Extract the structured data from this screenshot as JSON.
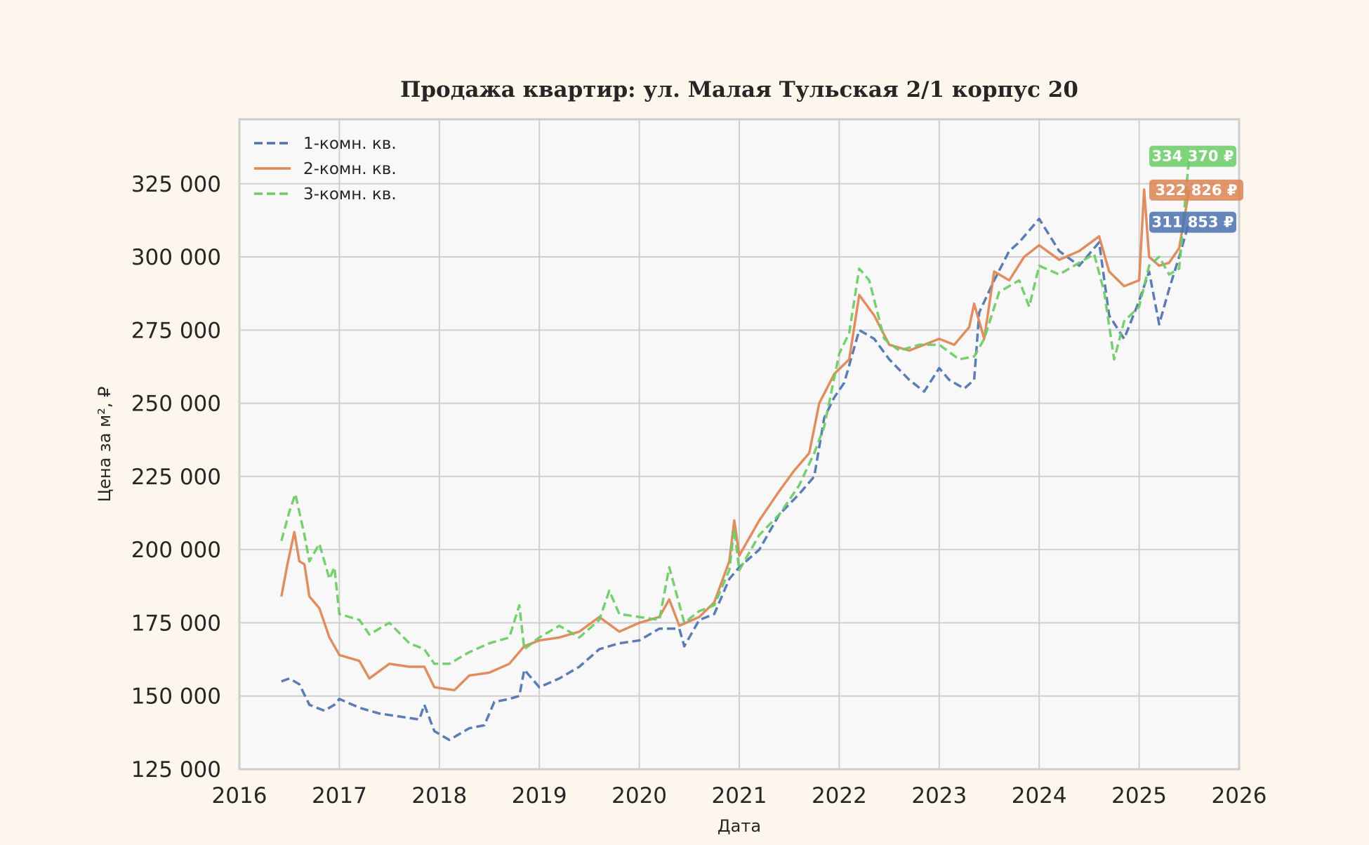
{
  "chart_data": {
    "type": "line",
    "title": "Продажа квартир: ул. Малая Тульская 2/1 корпус 20",
    "xlabel": "Дата",
    "ylabel": "Цена за м², ₽",
    "xlim": [
      2016,
      2026
    ],
    "ylim": [
      125000,
      347000
    ],
    "x_ticks": [
      2016,
      2017,
      2018,
      2019,
      2020,
      2021,
      2022,
      2023,
      2024,
      2025,
      2026
    ],
    "x_tick_labels": [
      "2016",
      "2017",
      "2018",
      "2019",
      "2020",
      "2021",
      "2022",
      "2023",
      "2024",
      "2025",
      "2026"
    ],
    "y_ticks": [
      125000,
      150000,
      175000,
      200000,
      225000,
      250000,
      275000,
      300000,
      325000
    ],
    "y_tick_labels": [
      "125 000",
      "150 000",
      "175 000",
      "200 000",
      "225 000",
      "250 000",
      "275 000",
      "300 000",
      "325 000"
    ],
    "grid": true,
    "legend_position": "top-left",
    "series": [
      {
        "name": "1-комн. кв.",
        "color": "#4c72b0",
        "dash": "dashed",
        "last_value_label": "311 853 ₽",
        "x": [
          2016.42,
          2016.5,
          2016.6,
          2016.7,
          2016.85,
          2016.95,
          2017.0,
          2017.2,
          2017.4,
          2017.6,
          2017.8,
          2017.85,
          2017.95,
          2018.1,
          2018.3,
          2018.45,
          2018.55,
          2018.7,
          2018.8,
          2018.85,
          2019.0,
          2019.2,
          2019.4,
          2019.6,
          2019.8,
          2020.0,
          2020.2,
          2020.4,
          2020.45,
          2020.6,
          2020.75,
          2020.9,
          2021.0,
          2021.2,
          2021.4,
          2021.6,
          2021.75,
          2021.85,
          2021.95,
          2022.05,
          2022.2,
          2022.35,
          2022.5,
          2022.7,
          2022.85,
          2023.0,
          2023.1,
          2023.25,
          2023.35,
          2023.4,
          2023.55,
          2023.7,
          2023.8,
          2024.0,
          2024.2,
          2024.4,
          2024.6,
          2024.7,
          2024.85,
          2025.0,
          2025.1,
          2025.2,
          2025.3,
          2025.4,
          2025.5
        ],
        "y": [
          155000,
          156000,
          154000,
          147000,
          145000,
          147000,
          149000,
          146000,
          144000,
          143000,
          142000,
          147000,
          138000,
          135000,
          139000,
          140000,
          148000,
          149000,
          150000,
          159000,
          153000,
          156000,
          160000,
          166000,
          168000,
          169000,
          173000,
          173000,
          167000,
          176000,
          178000,
          190000,
          194000,
          200000,
          212000,
          219000,
          225000,
          245000,
          252000,
          257000,
          275000,
          272000,
          265000,
          258000,
          254000,
          262000,
          258000,
          255000,
          258000,
          281000,
          292000,
          302000,
          305000,
          313000,
          302000,
          297000,
          305000,
          280000,
          272000,
          285000,
          295000,
          277000,
          289000,
          300000,
          311853
        ]
      },
      {
        "name": "2-комн. кв.",
        "color": "#dd8452",
        "dash": "solid",
        "last_value_label": "322 826 ₽",
        "x": [
          2016.42,
          2016.48,
          2016.55,
          2016.6,
          2016.65,
          2016.7,
          2016.8,
          2016.9,
          2017.0,
          2017.2,
          2017.3,
          2017.5,
          2017.7,
          2017.85,
          2017.95,
          2018.15,
          2018.3,
          2018.5,
          2018.7,
          2018.85,
          2019.0,
          2019.2,
          2019.4,
          2019.6,
          2019.8,
          2020.0,
          2020.2,
          2020.3,
          2020.4,
          2020.6,
          2020.75,
          2020.9,
          2020.95,
          2021.0,
          2021.2,
          2021.4,
          2021.55,
          2021.7,
          2021.8,
          2021.95,
          2022.1,
          2022.2,
          2022.35,
          2022.5,
          2022.7,
          2022.85,
          2023.0,
          2023.15,
          2023.3,
          2023.35,
          2023.45,
          2023.55,
          2023.7,
          2023.85,
          2024.0,
          2024.2,
          2024.4,
          2024.6,
          2024.7,
          2024.85,
          2025.0,
          2025.05,
          2025.1,
          2025.2,
          2025.3,
          2025.4,
          2025.5
        ],
        "y": [
          184000,
          195000,
          206000,
          196000,
          195000,
          184000,
          180000,
          170000,
          164000,
          162000,
          156000,
          161000,
          160000,
          160000,
          153000,
          152000,
          157000,
          158000,
          161000,
          167000,
          169000,
          170000,
          172000,
          177000,
          172000,
          175000,
          177000,
          183000,
          174000,
          177000,
          182000,
          196000,
          210000,
          198000,
          210000,
          220000,
          227000,
          233000,
          250000,
          260000,
          265000,
          287000,
          280000,
          270000,
          268000,
          270000,
          272000,
          270000,
          276000,
          284000,
          272000,
          295000,
          292000,
          300000,
          304000,
          299000,
          302000,
          307000,
          295000,
          290000,
          292000,
          323000,
          300000,
          297000,
          298000,
          303000,
          322826
        ]
      },
      {
        "name": "3-комн. кв.",
        "color": "#6acc64",
        "dash": "dashed",
        "last_value_label": "334 370 ₽",
        "x": [
          2016.42,
          2016.5,
          2016.56,
          2016.65,
          2016.7,
          2016.8,
          2016.9,
          2016.95,
          2017.0,
          2017.2,
          2017.3,
          2017.5,
          2017.7,
          2017.85,
          2017.95,
          2018.1,
          2018.3,
          2018.5,
          2018.7,
          2018.8,
          2018.85,
          2019.0,
          2019.2,
          2019.4,
          2019.6,
          2019.7,
          2019.8,
          2020.0,
          2020.2,
          2020.3,
          2020.45,
          2020.6,
          2020.75,
          2020.9,
          2020.95,
          2021.0,
          2021.2,
          2021.4,
          2021.6,
          2021.75,
          2021.85,
          2022.0,
          2022.1,
          2022.2,
          2022.3,
          2022.45,
          2022.6,
          2022.8,
          2023.0,
          2023.2,
          2023.35,
          2023.45,
          2023.6,
          2023.8,
          2023.9,
          2024.0,
          2024.2,
          2024.4,
          2024.55,
          2024.65,
          2024.75,
          2024.85,
          2025.0,
          2025.1,
          2025.2,
          2025.3,
          2025.4,
          2025.5
        ],
        "y": [
          203000,
          213000,
          219000,
          205000,
          196000,
          202000,
          190000,
          194000,
          178000,
          176000,
          171000,
          175000,
          168000,
          166000,
          161000,
          161000,
          165000,
          168000,
          170000,
          181000,
          166000,
          170000,
          174000,
          170000,
          176000,
          186000,
          178000,
          177000,
          176000,
          194000,
          175000,
          179000,
          181000,
          193000,
          207000,
          193000,
          205000,
          212000,
          222000,
          233000,
          242000,
          267000,
          274000,
          296000,
          292000,
          272000,
          268000,
          270000,
          270000,
          265000,
          266000,
          272000,
          288000,
          292000,
          283000,
          297000,
          294000,
          298000,
          301000,
          288000,
          265000,
          278000,
          283000,
          297000,
          300000,
          294000,
          296000,
          334370
        ]
      }
    ]
  }
}
